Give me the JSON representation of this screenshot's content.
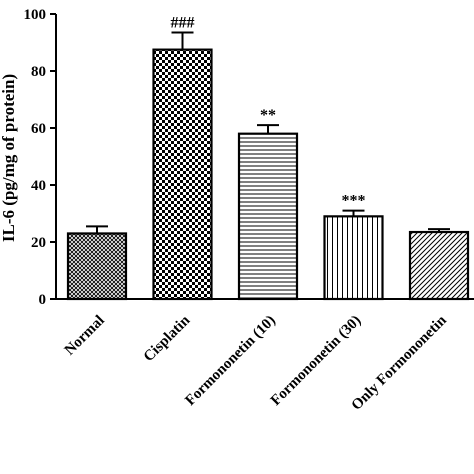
{
  "chart_data": {
    "type": "bar",
    "ylabel": "IL-6 (pg/mg of protein)",
    "ylim": [
      0,
      100
    ],
    "yticks": [
      0,
      20,
      40,
      60,
      80,
      100
    ],
    "grid": false,
    "categories": [
      "Normal",
      "Cisplatin",
      "Formononetin (10)",
      "Formononetin (30)",
      "Only Formononetin"
    ],
    "values": [
      23,
      87.5,
      58,
      29,
      23.5
    ],
    "errors": [
      2.5,
      6,
      3,
      2,
      1
    ],
    "significance": [
      "",
      "###",
      "**",
      "***",
      ""
    ],
    "patterns": [
      "crosshatch-fine",
      "checkerboard",
      "horizontal-lines",
      "vertical-lines",
      "diagonal-lines"
    ],
    "colors": {
      "bar_stroke": "#000000",
      "bar_pattern": "#000000",
      "background": "#ffffff"
    }
  }
}
